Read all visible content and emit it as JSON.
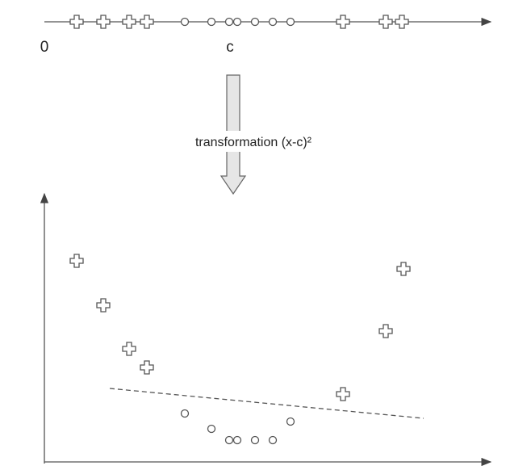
{
  "labels": {
    "zero": "0",
    "center": "c",
    "transformation": "transformation (x-c)²"
  }
}
